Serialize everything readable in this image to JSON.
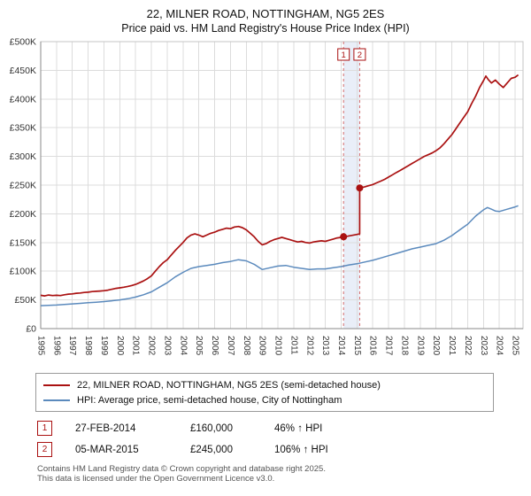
{
  "chart_data": {
    "type": "line",
    "title": "22, MILNER ROAD, NOTTINGHAM, NG5 2ES",
    "subtitle": "Price paid vs. HM Land Registry's House Price Index (HPI)",
    "xlabel": "",
    "ylabel": "",
    "grid": true,
    "legend_position": "bottom",
    "xlim": [
      1995,
      2025.5
    ],
    "ylim": [
      0,
      500000
    ],
    "x_ticks": [
      1995,
      1996,
      1997,
      1998,
      1999,
      2000,
      2001,
      2002,
      2003,
      2004,
      2005,
      2006,
      2007,
      2008,
      2009,
      2010,
      2011,
      2012,
      2013,
      2014,
      2015,
      2016,
      2017,
      2018,
      2019,
      2020,
      2021,
      2022,
      2023,
      2024,
      2025
    ],
    "y_ticks": [
      {
        "v": 0,
        "label": "£0"
      },
      {
        "v": 50000,
        "label": "£50K"
      },
      {
        "v": 100000,
        "label": "£100K"
      },
      {
        "v": 150000,
        "label": "£150K"
      },
      {
        "v": 200000,
        "label": "£200K"
      },
      {
        "v": 250000,
        "label": "£250K"
      },
      {
        "v": 300000,
        "label": "£300K"
      },
      {
        "v": 350000,
        "label": "£350K"
      },
      {
        "v": 400000,
        "label": "£400K"
      },
      {
        "v": 450000,
        "label": "£450K"
      },
      {
        "v": 500000,
        "label": "£500K"
      }
    ],
    "grid_color": "#dcdcdc",
    "plot_border_color": "#c4c4c4",
    "axis_color": "#8a8a8a",
    "sale_line_color": "#d46a6a",
    "band": {
      "x1": 2014.15,
      "x2": 2015.17,
      "color": "rgba(110,140,210,0.15)"
    },
    "annotations": [
      {
        "label": "1",
        "x": 2014.15,
        "y": 160000
      },
      {
        "label": "2",
        "x": 2015.17,
        "y": 245000
      }
    ],
    "series": [
      {
        "name": "22, MILNER ROAD, NOTTINGHAM, NG5 2ES (semi-detached house)",
        "color": "#aa1111",
        "points": [
          [
            1995.0,
            58000
          ],
          [
            1995.25,
            57000
          ],
          [
            1995.5,
            58500
          ],
          [
            1995.75,
            57500
          ],
          [
            1996.0,
            58000
          ],
          [
            1996.25,
            57500
          ],
          [
            1996.5,
            59000
          ],
          [
            1996.75,
            60000
          ],
          [
            1997.0,
            60500
          ],
          [
            1997.25,
            61500
          ],
          [
            1997.5,
            62000
          ],
          [
            1997.75,
            63000
          ],
          [
            1998.0,
            63500
          ],
          [
            1998.25,
            64500
          ],
          [
            1998.5,
            65000
          ],
          [
            1998.75,
            65500
          ],
          [
            1999.0,
            66000
          ],
          [
            1999.25,
            67000
          ],
          [
            1999.5,
            68500
          ],
          [
            1999.75,
            70000
          ],
          [
            2000.0,
            71000
          ],
          [
            2000.25,
            72000
          ],
          [
            2000.5,
            73500
          ],
          [
            2000.75,
            75000
          ],
          [
            2001.0,
            77000
          ],
          [
            2001.25,
            80000
          ],
          [
            2001.5,
            83000
          ],
          [
            2001.75,
            87000
          ],
          [
            2002.0,
            92000
          ],
          [
            2002.25,
            100000
          ],
          [
            2002.5,
            108000
          ],
          [
            2002.75,
            115000
          ],
          [
            2003.0,
            120000
          ],
          [
            2003.25,
            128000
          ],
          [
            2003.5,
            136000
          ],
          [
            2003.75,
            143000
          ],
          [
            2004.0,
            150000
          ],
          [
            2004.25,
            158000
          ],
          [
            2004.5,
            163000
          ],
          [
            2004.75,
            165000
          ],
          [
            2005.0,
            163000
          ],
          [
            2005.25,
            160000
          ],
          [
            2005.5,
            163000
          ],
          [
            2005.75,
            166000
          ],
          [
            2006.0,
            168000
          ],
          [
            2006.25,
            171000
          ],
          [
            2006.5,
            173000
          ],
          [
            2006.75,
            175000
          ],
          [
            2007.0,
            174000
          ],
          [
            2007.25,
            177000
          ],
          [
            2007.5,
            178000
          ],
          [
            2007.75,
            176000
          ],
          [
            2008.0,
            172000
          ],
          [
            2008.25,
            166000
          ],
          [
            2008.5,
            160000
          ],
          [
            2008.75,
            152000
          ],
          [
            2009.0,
            146000
          ],
          [
            2009.25,
            148000
          ],
          [
            2009.5,
            152000
          ],
          [
            2009.75,
            155000
          ],
          [
            2010.0,
            157000
          ],
          [
            2010.25,
            159000
          ],
          [
            2010.5,
            157000
          ],
          [
            2010.75,
            155000
          ],
          [
            2011.0,
            153000
          ],
          [
            2011.25,
            151000
          ],
          [
            2011.5,
            152000
          ],
          [
            2011.75,
            150000
          ],
          [
            2012.0,
            149000
          ],
          [
            2012.25,
            151000
          ],
          [
            2012.5,
            152000
          ],
          [
            2012.75,
            153000
          ],
          [
            2013.0,
            152000
          ],
          [
            2013.25,
            154000
          ],
          [
            2013.5,
            156000
          ],
          [
            2013.75,
            158000
          ],
          [
            2014.0,
            159000
          ],
          [
            2014.15,
            160000
          ],
          [
            2014.4,
            161000
          ],
          [
            2014.7,
            162500
          ],
          [
            2015.0,
            164000
          ],
          [
            2015.17,
            165000
          ],
          [
            2015.17,
            245000
          ],
          [
            2015.5,
            247000
          ],
          [
            2015.75,
            249000
          ],
          [
            2016.0,
            251000
          ],
          [
            2016.25,
            254000
          ],
          [
            2016.5,
            257000
          ],
          [
            2016.75,
            260000
          ],
          [
            2017.0,
            264000
          ],
          [
            2017.25,
            268000
          ],
          [
            2017.5,
            272000
          ],
          [
            2017.75,
            276000
          ],
          [
            2018.0,
            280000
          ],
          [
            2018.25,
            284000
          ],
          [
            2018.5,
            288000
          ],
          [
            2018.75,
            292000
          ],
          [
            2019.0,
            296000
          ],
          [
            2019.25,
            300000
          ],
          [
            2019.5,
            303000
          ],
          [
            2019.75,
            306000
          ],
          [
            2020.0,
            310000
          ],
          [
            2020.25,
            315000
          ],
          [
            2020.5,
            322000
          ],
          [
            2020.75,
            330000
          ],
          [
            2021.0,
            338000
          ],
          [
            2021.25,
            348000
          ],
          [
            2021.5,
            358000
          ],
          [
            2021.75,
            368000
          ],
          [
            2022.0,
            378000
          ],
          [
            2022.25,
            392000
          ],
          [
            2022.5,
            405000
          ],
          [
            2022.75,
            420000
          ],
          [
            2023.0,
            432000
          ],
          [
            2023.15,
            440000
          ],
          [
            2023.3,
            434000
          ],
          [
            2023.5,
            428000
          ],
          [
            2023.75,
            433000
          ],
          [
            2024.0,
            426000
          ],
          [
            2024.25,
            420000
          ],
          [
            2024.5,
            428000
          ],
          [
            2024.75,
            436000
          ],
          [
            2025.0,
            438000
          ],
          [
            2025.2,
            442000
          ]
        ]
      },
      {
        "name": "HPI: Average price, semi-detached house, City of Nottingham",
        "color": "#5b8abd",
        "points": [
          [
            1995.0,
            40000
          ],
          [
            1995.5,
            40500
          ],
          [
            1996.0,
            41000
          ],
          [
            1996.5,
            42000
          ],
          [
            1997.0,
            43000
          ],
          [
            1997.5,
            44000
          ],
          [
            1998.0,
            45000
          ],
          [
            1998.5,
            46000
          ],
          [
            1999.0,
            47000
          ],
          [
            1999.5,
            48500
          ],
          [
            2000.0,
            50000
          ],
          [
            2000.5,
            52000
          ],
          [
            2001.0,
            55000
          ],
          [
            2001.5,
            59000
          ],
          [
            2002.0,
            64000
          ],
          [
            2002.5,
            72000
          ],
          [
            2003.0,
            80000
          ],
          [
            2003.5,
            90000
          ],
          [
            2004.0,
            98000
          ],
          [
            2004.5,
            105000
          ],
          [
            2005.0,
            108000
          ],
          [
            2005.5,
            110000
          ],
          [
            2006.0,
            112000
          ],
          [
            2006.5,
            115000
          ],
          [
            2007.0,
            117000
          ],
          [
            2007.5,
            120000
          ],
          [
            2008.0,
            118000
          ],
          [
            2008.5,
            112000
          ],
          [
            2009.0,
            103000
          ],
          [
            2009.5,
            106000
          ],
          [
            2010.0,
            109000
          ],
          [
            2010.5,
            110000
          ],
          [
            2011.0,
            107000
          ],
          [
            2011.5,
            105000
          ],
          [
            2012.0,
            103000
          ],
          [
            2012.5,
            104000
          ],
          [
            2013.0,
            104000
          ],
          [
            2013.5,
            106000
          ],
          [
            2014.0,
            108000
          ],
          [
            2014.5,
            111000
          ],
          [
            2015.0,
            113000
          ],
          [
            2015.5,
            116000
          ],
          [
            2016.0,
            119000
          ],
          [
            2016.5,
            123000
          ],
          [
            2017.0,
            127000
          ],
          [
            2017.5,
            131000
          ],
          [
            2018.0,
            135000
          ],
          [
            2018.5,
            139000
          ],
          [
            2019.0,
            142000
          ],
          [
            2019.5,
            145000
          ],
          [
            2020.0,
            148000
          ],
          [
            2020.5,
            154000
          ],
          [
            2021.0,
            162000
          ],
          [
            2021.5,
            172000
          ],
          [
            2022.0,
            182000
          ],
          [
            2022.5,
            196000
          ],
          [
            2023.0,
            207000
          ],
          [
            2023.25,
            211000
          ],
          [
            2023.5,
            208000
          ],
          [
            2023.75,
            205000
          ],
          [
            2024.0,
            204000
          ],
          [
            2024.5,
            208000
          ],
          [
            2025.0,
            212000
          ],
          [
            2025.2,
            214000
          ]
        ]
      }
    ]
  },
  "transactions": [
    {
      "num": "1",
      "date": "27-FEB-2014",
      "price": "£160,000",
      "hpi": "46% ↑ HPI"
    },
    {
      "num": "2",
      "date": "05-MAR-2015",
      "price": "£245,000",
      "hpi": "106% ↑ HPI"
    }
  ],
  "footer": {
    "line1": "Contains HM Land Registry data © Crown copyright and database right 2025.",
    "line2": "This data is licensed under the Open Government Licence v3.0."
  }
}
